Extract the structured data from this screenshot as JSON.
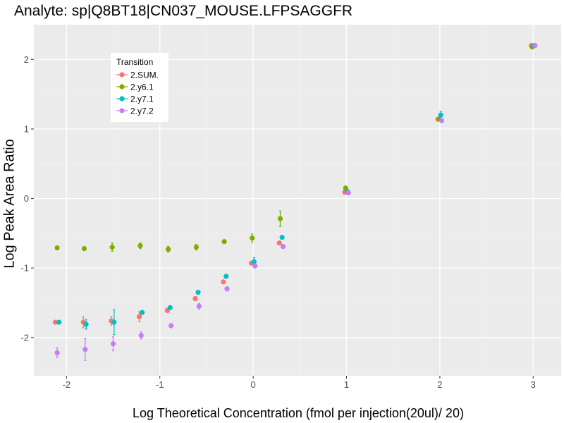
{
  "chart_data": {
    "type": "scatter",
    "title": "Analyte: sp|Q8BT18|CN037_MOUSE.LFPSAGGFR",
    "xlabel": "Log Theoretical Concentration (fmol per injection(20ul)/ 20)",
    "ylabel": "Log Peak Area Ratio",
    "xlim": [
      -2.35,
      3.3
    ],
    "ylim": [
      -2.55,
      2.5
    ],
    "x_ticks": [
      -2,
      -1,
      0,
      1,
      2,
      3
    ],
    "x_tick_labels": [
      "-2",
      "-1",
      "0",
      "1",
      "2",
      "3"
    ],
    "y_ticks": [
      -2,
      -1,
      0,
      1,
      2
    ],
    "y_tick_labels": [
      "-2",
      "-1",
      "0",
      "1",
      "2"
    ],
    "grid": true,
    "legend": {
      "title": "Transition",
      "position": "top-left"
    },
    "series": [
      {
        "name": "2.SUM.",
        "color": "#F8766D",
        "points": [
          {
            "x": -2.12,
            "y": -1.78,
            "err": 0.01
          },
          {
            "x": -1.82,
            "y": -1.78,
            "err": 0.08
          },
          {
            "x": -1.52,
            "y": -1.76,
            "err": 0.06
          },
          {
            "x": -1.22,
            "y": -1.7,
            "err": 0.07
          },
          {
            "x": -0.92,
            "y": -1.61,
            "err": 0.03
          },
          {
            "x": -0.62,
            "y": -1.44,
            "err": 0.03
          },
          {
            "x": -0.32,
            "y": -1.2,
            "err": 0.02
          },
          {
            "x": -0.02,
            "y": -0.93,
            "err": 0.02
          },
          {
            "x": 0.28,
            "y": -0.64,
            "err": 0.02
          },
          {
            "x": 0.98,
            "y": 0.09,
            "err": 0.01
          },
          {
            "x": 1.98,
            "y": 1.14,
            "err": 0.01
          },
          {
            "x": 2.98,
            "y": 2.2,
            "err": 0.01
          }
        ]
      },
      {
        "name": "2.y6.1",
        "color": "#7CAE00",
        "points": [
          {
            "x": -2.1,
            "y": -0.71,
            "err": 0.01
          },
          {
            "x": -1.81,
            "y": -0.72,
            "err": 0.02
          },
          {
            "x": -1.51,
            "y": -0.7,
            "err": 0.06
          },
          {
            "x": -1.21,
            "y": -0.68,
            "err": 0.04
          },
          {
            "x": -0.91,
            "y": -0.73,
            "err": 0.04
          },
          {
            "x": -0.61,
            "y": -0.7,
            "err": 0.04
          },
          {
            "x": -0.31,
            "y": -0.62,
            "err": 0.01
          },
          {
            "x": -0.01,
            "y": -0.57,
            "err": 0.06
          },
          {
            "x": 0.29,
            "y": -0.29,
            "err": 0.11
          },
          {
            "x": 0.99,
            "y": 0.15,
            "err": 0.01
          },
          {
            "x": 1.99,
            "y": 1.14,
            "err": 0.01
          },
          {
            "x": 2.99,
            "y": 2.18,
            "err": 0.01
          }
        ]
      },
      {
        "name": "2.y7.1",
        "color": "#00BFC4",
        "points": [
          {
            "x": -2.08,
            "y": -1.78,
            "err": 0.01
          },
          {
            "x": -1.79,
            "y": -1.81,
            "err": 0.07
          },
          {
            "x": -1.49,
            "y": -1.78,
            "err": 0.18
          },
          {
            "x": -1.19,
            "y": -1.64,
            "err": 0.02
          },
          {
            "x": -0.89,
            "y": -1.57,
            "err": 0.02
          },
          {
            "x": -0.59,
            "y": -1.35,
            "err": 0.02
          },
          {
            "x": -0.29,
            "y": -1.12,
            "err": 0.02
          },
          {
            "x": 0.01,
            "y": -0.91,
            "err": 0.06
          },
          {
            "x": 0.31,
            "y": -0.56,
            "err": 0.02
          },
          {
            "x": 1.01,
            "y": 0.1,
            "err": 0.01
          },
          {
            "x": 2.01,
            "y": 1.2,
            "err": 0.05
          },
          {
            "x": 3.01,
            "y": 2.2,
            "err": 0.01
          }
        ]
      },
      {
        "name": "2.y7.2",
        "color": "#C77CFF",
        "points": [
          {
            "x": -2.1,
            "y": -2.22,
            "err": 0.07
          },
          {
            "x": -1.8,
            "y": -2.17,
            "err": 0.16
          },
          {
            "x": -1.5,
            "y": -2.09,
            "err": 0.1
          },
          {
            "x": -1.2,
            "y": -1.97,
            "err": 0.05
          },
          {
            "x": -0.88,
            "y": -1.83,
            "err": 0.03
          },
          {
            "x": -0.58,
            "y": -1.55,
            "err": 0.04
          },
          {
            "x": -0.28,
            "y": -1.3,
            "err": 0.03
          },
          {
            "x": 0.02,
            "y": -0.97,
            "err": 0.02
          },
          {
            "x": 0.32,
            "y": -0.69,
            "err": 0.03
          },
          {
            "x": 1.02,
            "y": 0.08,
            "err": 0.01
          },
          {
            "x": 2.02,
            "y": 1.12,
            "err": 0.01
          },
          {
            "x": 3.02,
            "y": 2.2,
            "err": 0.01
          }
        ]
      }
    ]
  }
}
